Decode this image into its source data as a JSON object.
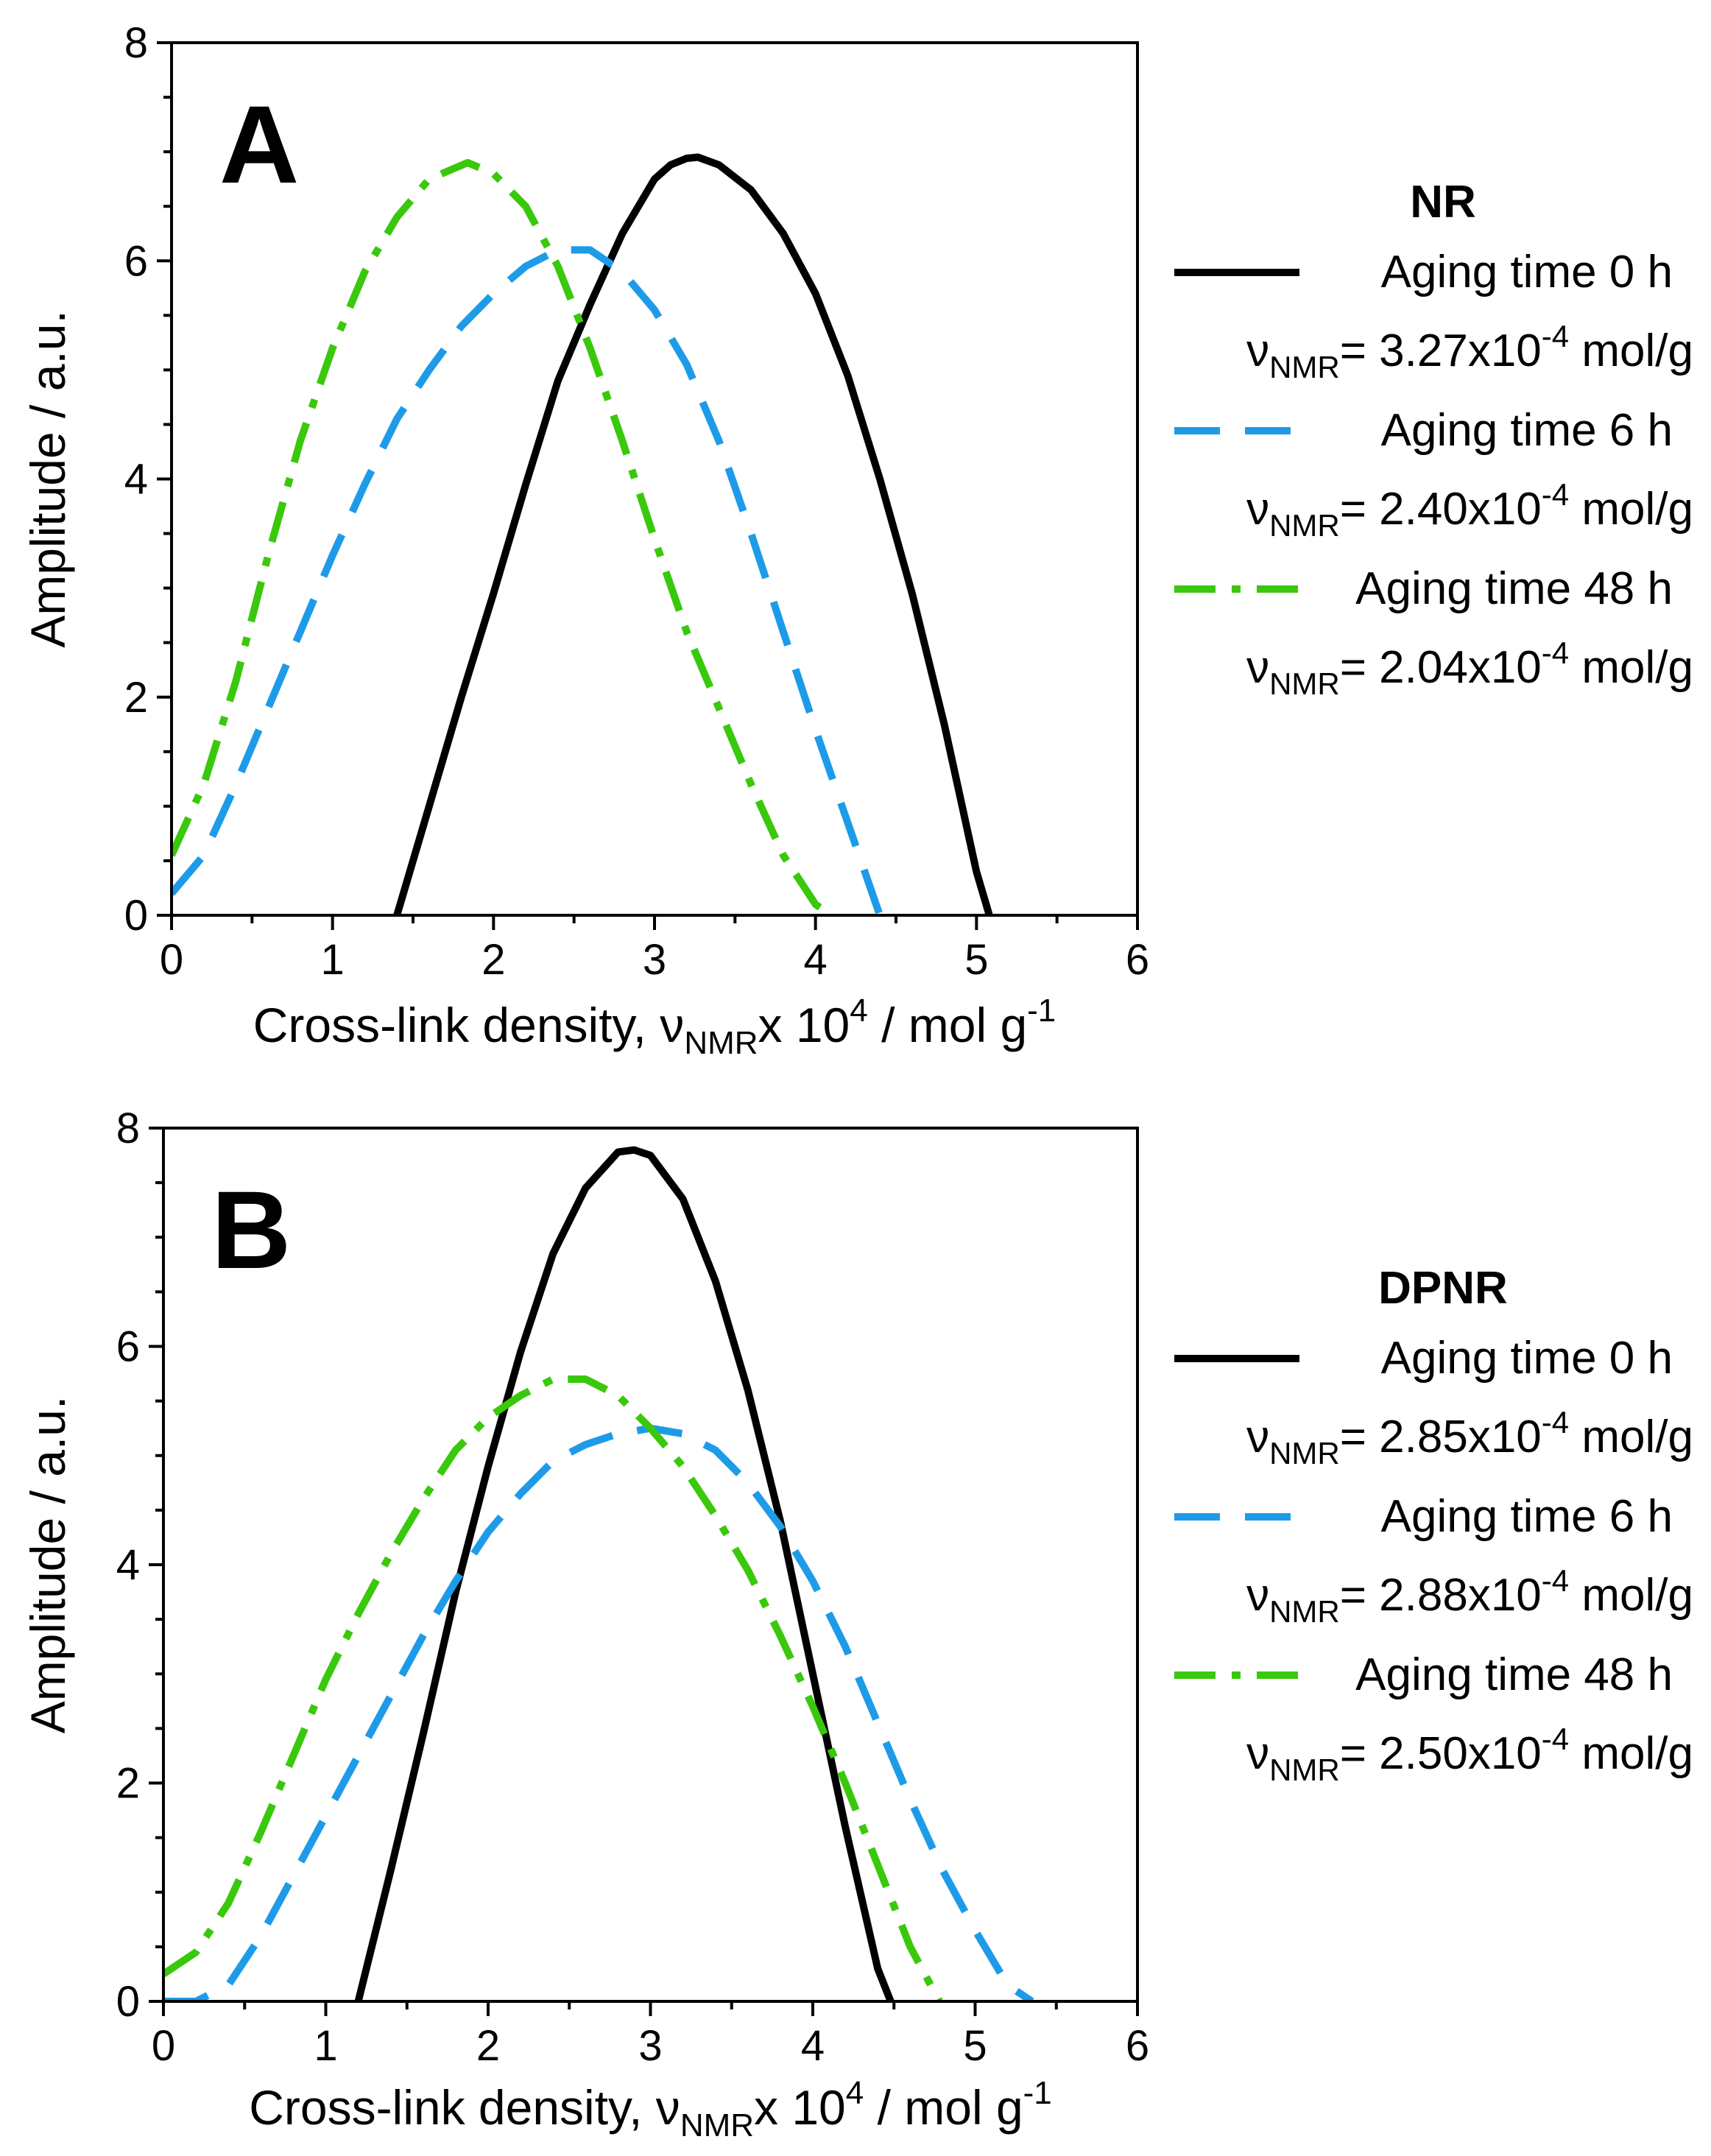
{
  "chart_data": [
    {
      "type": "line",
      "panel_label": "A",
      "xlabel": {
        "main": "Cross-link density, ν",
        "sub": "NMR",
        "mid": "x 10",
        "sup": "4",
        "tail": " / mol g",
        "sup2": "-1"
      },
      "ylabel": "Amplitude / a.u.",
      "xlim": [
        0,
        6
      ],
      "ylim": [
        0,
        8
      ],
      "xticks": [
        "0",
        "1",
        "2",
        "3",
        "4",
        "5",
        "6"
      ],
      "yticks": [
        "0",
        "2",
        "4",
        "6",
        "8"
      ],
      "grid": false,
      "legend": {
        "title": "NR",
        "placement": "right",
        "entries": [
          {
            "label": "Aging time 0 h",
            "nu": {
              "sym": "ν",
              "sub": "NMR",
              "pre": "= 3.27x10",
              "sup": "-4",
              "post": " mol/g"
            }
          },
          {
            "label": "Aging time 6 h",
            "nu": {
              "sym": "ν",
              "sub": "NMR",
              "pre": "= 2.40x10",
              "sup": "-4",
              "post": " mol/g"
            }
          },
          {
            "label": "Aging time 48 h",
            "nu": {
              "sym": "ν",
              "sub": "NMR",
              "pre": "= 2.04x10",
              "sup": "-4",
              "post": " mol/g"
            }
          }
        ]
      },
      "series": [
        {
          "name": "Aging time 0 h",
          "color": "#000000",
          "style": "solid",
          "x": [
            1.4,
            1.6,
            1.8,
            2.0,
            2.2,
            2.4,
            2.6,
            2.8,
            3.0,
            3.1,
            3.2,
            3.27,
            3.4,
            3.6,
            3.8,
            4.0,
            4.2,
            4.4,
            4.6,
            4.8,
            5.0,
            5.08
          ],
          "y": [
            0.0,
            1.0,
            2.0,
            2.95,
            3.95,
            4.9,
            5.6,
            6.25,
            6.75,
            6.88,
            6.94,
            6.95,
            6.88,
            6.65,
            6.25,
            5.7,
            4.95,
            4.0,
            2.95,
            1.75,
            0.4,
            0.0
          ]
        },
        {
          "name": "Aging time 6 h",
          "color": "#1e9be8",
          "style": "dashed",
          "x": [
            0.0,
            0.2,
            0.4,
            0.6,
            0.8,
            1.0,
            1.2,
            1.4,
            1.6,
            1.8,
            2.0,
            2.2,
            2.4,
            2.6,
            2.8,
            3.0,
            3.2,
            3.4,
            3.6,
            3.8,
            4.0,
            4.2,
            4.4
          ],
          "y": [
            0.2,
            0.55,
            1.2,
            1.9,
            2.6,
            3.3,
            3.95,
            4.55,
            5.0,
            5.4,
            5.7,
            5.95,
            6.1,
            6.1,
            5.9,
            5.55,
            5.05,
            4.35,
            3.5,
            2.6,
            1.7,
            0.85,
            0.0
          ]
        },
        {
          "name": "Aging time 48 h",
          "color": "#3ac80c",
          "style": "dashdot",
          "x": [
            0.0,
            0.2,
            0.4,
            0.6,
            0.8,
            1.0,
            1.2,
            1.4,
            1.6,
            1.84,
            2.0,
            2.2,
            2.4,
            2.6,
            2.8,
            3.0,
            3.2,
            3.4,
            3.6,
            3.8,
            4.0,
            4.1
          ],
          "y": [
            0.55,
            1.2,
            2.15,
            3.3,
            4.35,
            5.2,
            5.9,
            6.4,
            6.75,
            6.9,
            6.8,
            6.5,
            5.95,
            5.2,
            4.35,
            3.45,
            2.6,
            1.9,
            1.2,
            0.55,
            0.1,
            0.0
          ]
        }
      ]
    },
    {
      "type": "line",
      "panel_label": "B",
      "xlabel": {
        "main": "Cross-link density, ν",
        "sub": "NMR",
        "mid": "x 10",
        "sup": "4",
        "tail": " / mol g",
        "sup2": "-1"
      },
      "ylabel": "Amplitude / a.u.",
      "xlim": [
        0,
        6
      ],
      "ylim": [
        0,
        8
      ],
      "xticks": [
        "0",
        "1",
        "2",
        "3",
        "4",
        "5",
        "6"
      ],
      "yticks": [
        "0",
        "2",
        "4",
        "6",
        "8"
      ],
      "grid": false,
      "legend": {
        "title": "DPNR",
        "placement": "right",
        "entries": [
          {
            "label": "Aging time 0 h",
            "nu": {
              "sym": "ν",
              "sub": "NMR",
              "pre": "= 2.85x10",
              "sup": "-4",
              "post": " mol/g"
            }
          },
          {
            "label": "Aging time 6 h",
            "nu": {
              "sym": "ν",
              "sub": "NMR",
              "pre": "= 2.88x10",
              "sup": "-4",
              "post": " mol/g"
            }
          },
          {
            "label": "Aging time 48 h",
            "nu": {
              "sym": "ν",
              "sub": "NMR",
              "pre": "= 2.50x10",
              "sup": "-4",
              "post": " mol/g"
            }
          }
        ]
      },
      "series": [
        {
          "name": "Aging time 0 h",
          "color": "#000000",
          "style": "solid",
          "x": [
            1.2,
            1.4,
            1.6,
            1.8,
            2.0,
            2.2,
            2.4,
            2.6,
            2.8,
            2.9,
            3.0,
            3.2,
            3.4,
            3.6,
            3.8,
            4.0,
            4.2,
            4.4,
            4.48
          ],
          "y": [
            0.0,
            1.2,
            2.45,
            3.75,
            4.9,
            5.95,
            6.85,
            7.45,
            7.78,
            7.8,
            7.75,
            7.35,
            6.6,
            5.6,
            4.4,
            3.0,
            1.6,
            0.3,
            0.0
          ]
        },
        {
          "name": "Aging time 6 h",
          "color": "#1e9be8",
          "style": "dashed",
          "x": [
            0.0,
            0.2,
            0.4,
            0.6,
            0.8,
            1.0,
            1.2,
            1.4,
            1.6,
            1.8,
            2.0,
            2.2,
            2.4,
            2.6,
            2.8,
            3.0,
            3.2,
            3.4,
            3.6,
            3.8,
            4.0,
            4.2,
            4.4,
            4.6,
            4.8,
            5.0,
            5.2,
            5.35
          ],
          "y": [
            0.0,
            0.0,
            0.15,
            0.6,
            1.15,
            1.7,
            2.25,
            2.8,
            3.35,
            3.85,
            4.3,
            4.65,
            4.95,
            5.1,
            5.2,
            5.25,
            5.2,
            5.05,
            4.75,
            4.35,
            3.85,
            3.25,
            2.55,
            1.85,
            1.2,
            0.65,
            0.15,
            0.0
          ]
        },
        {
          "name": "Aging time 48 h",
          "color": "#3ac80c",
          "style": "dashdot",
          "x": [
            0.0,
            0.2,
            0.4,
            0.6,
            0.8,
            1.0,
            1.2,
            1.4,
            1.6,
            1.8,
            2.0,
            2.2,
            2.4,
            2.6,
            2.8,
            3.0,
            3.2,
            3.4,
            3.6,
            3.8,
            4.0,
            4.2,
            4.4,
            4.6,
            4.78
          ],
          "y": [
            0.25,
            0.45,
            0.9,
            1.55,
            2.25,
            2.95,
            3.55,
            4.1,
            4.6,
            5.05,
            5.35,
            5.55,
            5.7,
            5.7,
            5.55,
            5.25,
            4.9,
            4.45,
            3.95,
            3.35,
            2.7,
            2.0,
            1.25,
            0.5,
            0.0
          ]
        }
      ]
    }
  ]
}
